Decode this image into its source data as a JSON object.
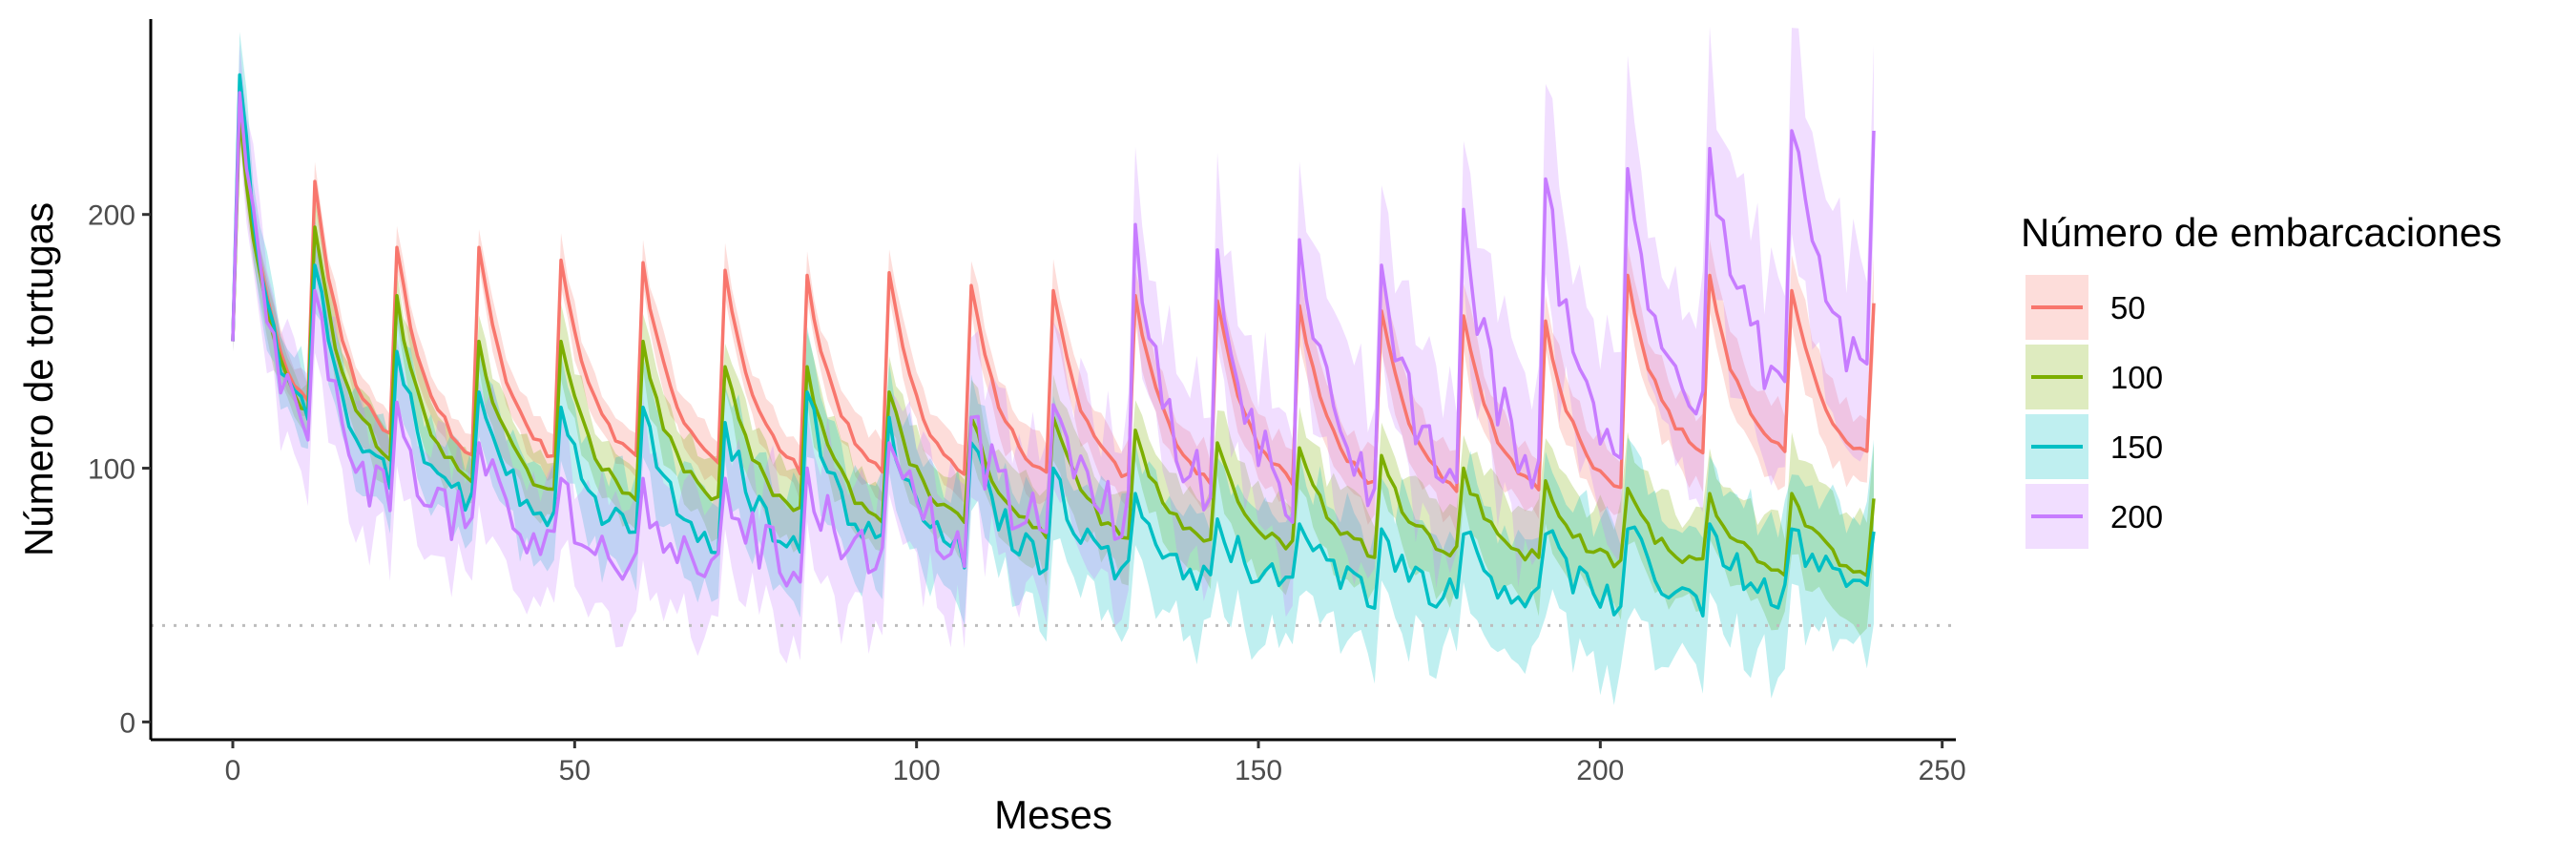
{
  "chart_data": {
    "type": "line",
    "title": "",
    "xlabel": "Meses",
    "ylabel": "Número de tortugas",
    "xlim": [
      -12,
      252
    ],
    "ylim": [
      -7,
      277
    ],
    "xticks": [
      0,
      50,
      100,
      150,
      200,
      250
    ],
    "xtick_labels": [
      "0",
      "50",
      "100",
      "150",
      "200",
      "250"
    ],
    "yticks": [
      0,
      100,
      200
    ],
    "ytick_labels": [
      "0",
      "100",
      "200"
    ],
    "reference_line": {
      "y": 38,
      "style": "dotted",
      "color": "#bdbdbd"
    },
    "legend": {
      "title": "Número de embarcaciones",
      "position": "right"
    },
    "band": "shaded ribbon around each mean line",
    "series": [
      {
        "name": "50",
        "color": "#F8766D",
        "cycle_peaks": [
          245,
          213,
          187,
          187,
          182,
          181,
          178,
          176,
          177,
          172,
          170,
          168,
          166,
          164,
          162,
          160,
          158,
          176,
          176,
          170,
          165
        ],
        "cycle_troughs": [
          110,
          100,
          96,
          94,
          94,
          92,
          90,
          90,
          88,
          88,
          87,
          86,
          86,
          85,
          84,
          84,
          83,
          98,
          98,
          97,
          95
        ],
        "band_halfwidth": 15
      },
      {
        "name": "100",
        "color": "#7CAE00",
        "cycle_peaks": [
          240,
          195,
          168,
          150,
          150,
          150,
          140,
          140,
          130,
          120,
          120,
          115,
          110,
          108,
          105,
          100,
          95,
          92,
          90,
          90,
          88
        ],
        "cycle_troughs": [
          105,
          95,
          85,
          82,
          80,
          78,
          75,
          72,
          72,
          70,
          68,
          66,
          64,
          62,
          62,
          60,
          58,
          58,
          57,
          56,
          54
        ],
        "band_halfwidth": 20
      },
      {
        "name": "150",
        "color": "#00BFC4",
        "cycle_peaks": [
          255,
          180,
          146,
          130,
          124,
          124,
          118,
          130,
          120,
          110,
          100,
          90,
          80,
          78,
          76,
          74,
          74,
          76,
          78,
          76,
          75
        ],
        "cycle_troughs": [
          100,
          88,
          78,
          72,
          68,
          66,
          64,
          62,
          60,
          58,
          56,
          52,
          50,
          48,
          46,
          45,
          44,
          44,
          45,
          48,
          55
        ],
        "band_halfwidth": 30
      },
      {
        "name": "200",
        "color": "#C77CFF",
        "cycle_peaks": [
          248,
          170,
          126,
          110,
          96,
          96,
          96,
          100,
          110,
          120,
          125,
          196,
          186,
          190,
          180,
          202,
          214,
          218,
          226,
          233,
          233
        ],
        "cycle_troughs": [
          98,
          78,
          70,
          60,
          55,
          54,
          55,
          58,
          64,
          70,
          74,
          76,
          78,
          80,
          82,
          86,
          96,
          112,
          122,
          128,
          132
        ],
        "band_halfwidth": 40
      }
    ]
  }
}
